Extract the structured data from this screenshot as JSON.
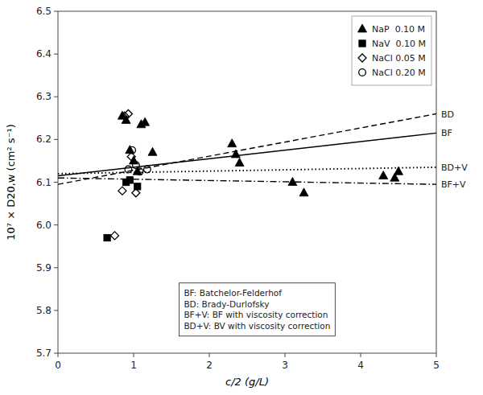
{
  "chart_data": {
    "type": "scatter",
    "xlabel": "c/2 (g/L)",
    "ylabel": "10⁷ × D20,w (cm² s⁻¹)",
    "xlim": [
      0,
      5
    ],
    "ylim": [
      5.7,
      6.5
    ],
    "xticks": [
      0,
      1,
      2,
      3,
      4,
      5
    ],
    "yticks": [
      5.7,
      5.8,
      5.9,
      {
        "value": 6.0,
        "label": "6.0"
      },
      6.1,
      6.2,
      6.3,
      6.4,
      6.5
    ],
    "grid": false,
    "legend": "upper right",
    "series": [
      {
        "name": "NaP  0.10 M",
        "type": "scatter",
        "marker": "triangle",
        "color": "#000000",
        "x": [
          0.85,
          0.9,
          0.95,
          1.0,
          1.05,
          1.1,
          1.15,
          1.25,
          2.3,
          2.35,
          2.4,
          3.1,
          3.25,
          4.3,
          4.45,
          4.5
        ],
        "values": [
          6.255,
          6.245,
          6.175,
          6.15,
          6.125,
          6.235,
          6.24,
          6.17,
          6.19,
          6.165,
          6.145,
          6.1,
          6.075,
          6.115,
          6.11,
          6.125
        ]
      },
      {
        "name": "NaV  0.10 M",
        "type": "scatter",
        "marker": "square",
        "color": "#000000",
        "x": [
          0.65,
          0.9,
          0.95,
          1.05
        ],
        "values": [
          5.97,
          6.1,
          6.105,
          6.09
        ]
      },
      {
        "name": "NaCl 0.05 M",
        "type": "scatter",
        "marker": "diamond-open",
        "color": "#000000",
        "x": [
          0.75,
          0.85,
          0.88,
          0.93,
          0.97,
          1.03
        ],
        "values": [
          5.975,
          6.08,
          6.255,
          6.26,
          6.16,
          6.075
        ]
      },
      {
        "name": "NaCl 0.20 M",
        "type": "scatter",
        "marker": "circle-open",
        "color": "#000000",
        "x": [
          0.93,
          0.98,
          1.03,
          1.08,
          1.18
        ],
        "values": [
          6.13,
          6.175,
          6.14,
          6.125,
          6.13
        ]
      },
      {
        "name": "BD",
        "type": "line",
        "line_style": "dashed",
        "color": "#000000",
        "x": [
          0,
          5
        ],
        "values": [
          6.095,
          6.26
        ]
      },
      {
        "name": "BF",
        "type": "line",
        "line_style": "solid",
        "color": "#000000",
        "x": [
          0,
          5
        ],
        "values": [
          6.115,
          6.215
        ]
      },
      {
        "name": "BD+V",
        "type": "line",
        "line_style": "dotted",
        "color": "#000000",
        "x": [
          0,
          5
        ],
        "values": [
          6.12,
          6.135
        ]
      },
      {
        "name": "BF+V",
        "type": "line",
        "line_style": "dashdot",
        "color": "#000000",
        "x": [
          0,
          5
        ],
        "values": [
          6.11,
          6.095
        ]
      }
    ],
    "annotation": "BF: Batchelor-Felderhof\nBD: Brady-Durlofsky\nBF+V: BF with viscosity correction\nBD+V: BV with viscosity correction"
  }
}
